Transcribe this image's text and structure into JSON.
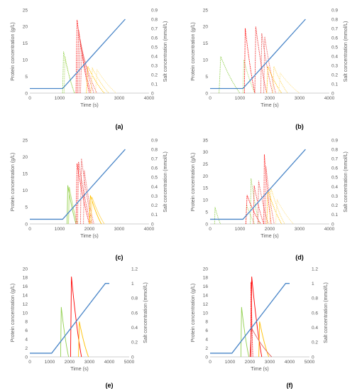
{
  "figure": {
    "panels": [
      {
        "id": "a",
        "label": "(a)"
      },
      {
        "id": "b",
        "label": "(b)"
      },
      {
        "id": "c",
        "label": "(c)"
      },
      {
        "id": "d",
        "label": "(d)"
      },
      {
        "id": "e",
        "label": "(e)"
      },
      {
        "id": "f",
        "label": "(f)"
      }
    ]
  },
  "chart_data": [
    {
      "panel": "a",
      "type": "line",
      "xlabel": "Time (s)",
      "ylabel": "Protein concentration (g/L)",
      "y2label": "Salt concentration (mmol/L)",
      "xlim": [
        0,
        4000
      ],
      "ylim": [
        0,
        25
      ],
      "y2lim": [
        0,
        0.9
      ],
      "xticks": [
        "0",
        "1000",
        "2000",
        "3000",
        "4000"
      ],
      "yticks": [
        "0",
        "5",
        "10",
        "15",
        "20",
        "25"
      ],
      "y2ticks": [
        "0",
        "0.1",
        "0.2",
        "0.3",
        "0.4",
        "0.5",
        "0.6",
        "0.7",
        "0.8",
        "0.9"
      ],
      "salt": {
        "color": "#4a86c8",
        "x": [
          0,
          1100,
          3200
        ],
        "y": [
          0.05,
          0.05,
          0.8
        ]
      },
      "peaks": [
        {
          "color": "#92d050",
          "dashed": true,
          "x0": 1100,
          "x1": 1500,
          "h": 12.5
        },
        {
          "color": "#b5dc70",
          "dashed": true,
          "x0": 1150,
          "x1": 1500,
          "h": 11
        },
        {
          "color": "#ff0000",
          "dashed": true,
          "x0": 1550,
          "x1": 2000,
          "h": 22
        },
        {
          "color": "#f03030",
          "dashed": true,
          "x0": 1600,
          "x1": 2050,
          "h": 19
        },
        {
          "color": "#e85050",
          "dashed": true,
          "x0": 1650,
          "x1": 2150,
          "h": 16
        },
        {
          "color": "#f06060",
          "dashed": true,
          "x0": 1700,
          "x1": 2250,
          "h": 13
        },
        {
          "color": "#ffc000",
          "dashed": true,
          "x0": 1900,
          "x1": 2500,
          "h": 8
        },
        {
          "color": "#ffd966",
          "dashed": true,
          "x0": 2050,
          "x1": 2650,
          "h": 7.5
        },
        {
          "color": "#ffe699",
          "dashed": true,
          "x0": 2200,
          "x1": 2900,
          "h": 7
        }
      ]
    },
    {
      "panel": "b",
      "type": "line",
      "xlabel": "Time (s)",
      "ylabel": "Protein concentration (g/L)",
      "y2label": "Salt concentration (mmol/L)",
      "xlim": [
        0,
        4000
      ],
      "ylim": [
        0,
        25
      ],
      "y2lim": [
        0,
        0.9
      ],
      "xticks": [
        "0",
        "1000",
        "2000",
        "3000",
        "4000"
      ],
      "yticks": [
        "0",
        "5",
        "10",
        "15",
        "20",
        "25"
      ],
      "y2ticks": [
        "0",
        "0.1",
        "0.2",
        "0.3",
        "0.4",
        "0.5",
        "0.6",
        "0.7",
        "0.8",
        "0.9"
      ],
      "salt": {
        "color": "#4a86c8",
        "x": [
          0,
          1100,
          3200
        ],
        "y": [
          0.05,
          0.05,
          0.8
        ]
      },
      "peaks": [
        {
          "color": "#92d050",
          "dashed": true,
          "x0": 300,
          "x1": 1000,
          "h": 11
        },
        {
          "color": "#b5dc70",
          "dashed": true,
          "x0": 1100,
          "x1": 1500,
          "h": 10
        },
        {
          "color": "#ff0000",
          "dashed": true,
          "x0": 1150,
          "x1": 1500,
          "h": 19.5
        },
        {
          "color": "#f03030",
          "dashed": true,
          "x0": 1500,
          "x1": 1900,
          "h": 20
        },
        {
          "color": "#e85050",
          "dashed": true,
          "x0": 1700,
          "x1": 2100,
          "h": 18
        },
        {
          "color": "#f06060",
          "dashed": true,
          "x0": 1800,
          "x1": 2200,
          "h": 17
        },
        {
          "color": "#ffc000",
          "dashed": true,
          "x0": 1900,
          "x1": 2400,
          "h": 8
        },
        {
          "color": "#ffd966",
          "dashed": true,
          "x0": 2100,
          "x1": 2600,
          "h": 8
        },
        {
          "color": "#ffe699",
          "dashed": true,
          "x0": 2300,
          "x1": 3000,
          "h": 6
        }
      ]
    },
    {
      "panel": "c",
      "type": "line",
      "xlabel": "Time (s)",
      "ylabel": "Protein concentration (g/L)",
      "y2label": "Salt concentration (mmol/L)",
      "xlim": [
        0,
        4000
      ],
      "ylim": [
        0,
        25
      ],
      "y2lim": [
        0,
        0.9
      ],
      "xticks": [
        "0",
        "1000",
        "2000",
        "3000",
        "4000"
      ],
      "yticks": [
        "0",
        "5",
        "10",
        "15",
        "20",
        "25"
      ],
      "y2ticks": [
        "0",
        "0.1",
        "0.2",
        "0.3",
        "0.4",
        "0.5",
        "0.6",
        "0.7",
        "0.8",
        "0.9"
      ],
      "salt": {
        "color": "#4a86c8",
        "x": [
          0,
          1100,
          3200
        ],
        "y": [
          0.05,
          0.05,
          0.8
        ]
      },
      "peaks": [
        {
          "color": "#92d050",
          "dashed": false,
          "x0": 1250,
          "x1": 1550,
          "h": 11.5
        },
        {
          "color": "#b5dc70",
          "dashed": false,
          "x0": 1300,
          "x1": 1600,
          "h": 11
        },
        {
          "color": "#ff0000",
          "dashed": true,
          "x0": 1550,
          "x1": 2000,
          "h": 18
        },
        {
          "color": "#f03030",
          "dashed": true,
          "x0": 1600,
          "x1": 2050,
          "h": 18.5
        },
        {
          "color": "#e85050",
          "dashed": true,
          "x0": 1700,
          "x1": 2100,
          "h": 19.5
        },
        {
          "color": "#f06060",
          "dashed": true,
          "x0": 1800,
          "x1": 2150,
          "h": 16
        },
        {
          "color": "#ffc000",
          "dashed": false,
          "x0": 2000,
          "x1": 2400,
          "h": 8.5
        },
        {
          "color": "#ffd966",
          "dashed": false,
          "x0": 2050,
          "x1": 2500,
          "h": 8
        }
      ]
    },
    {
      "panel": "d",
      "type": "line",
      "xlabel": "Time (s)",
      "ylabel": "Protein concentration (g/L)",
      "y2label": "Salt concentration (mmol/L)",
      "xlim": [
        0,
        4000
      ],
      "ylim": [
        0,
        35
      ],
      "y2lim": [
        0,
        0.9
      ],
      "xticks": [
        "0",
        "1000",
        "2000",
        "3000",
        "4000"
      ],
      "yticks": [
        "0",
        "5",
        "10",
        "15",
        "20",
        "25",
        "30",
        "35"
      ],
      "y2ticks": [
        "0",
        "0.1",
        "0.2",
        "0.3",
        "0.4",
        "0.5",
        "0.6",
        "0.7",
        "0.8",
        "0.9"
      ],
      "salt": {
        "color": "#4a86c8",
        "x": [
          0,
          1100,
          3200
        ],
        "y": [
          0.05,
          0.05,
          0.8
        ]
      },
      "peaks": [
        {
          "color": "#92d050",
          "dashed": true,
          "x0": 150,
          "x1": 350,
          "h": 7
        },
        {
          "color": "#b5dc70",
          "dashed": true,
          "x0": 1200,
          "x1": 1500,
          "h": 8
        },
        {
          "color": "#a0d060",
          "dashed": true,
          "x0": 1350,
          "x1": 1650,
          "h": 19
        },
        {
          "color": "#ff0000",
          "dashed": true,
          "x0": 1200,
          "x1": 1700,
          "h": 12
        },
        {
          "color": "#f03030",
          "dashed": true,
          "x0": 1450,
          "x1": 1800,
          "h": 16
        },
        {
          "color": "#e85050",
          "dashed": true,
          "x0": 1600,
          "x1": 1950,
          "h": 18
        },
        {
          "color": "#ff2020",
          "dashed": true,
          "x0": 1800,
          "x1": 2050,
          "h": 29
        },
        {
          "color": "#f06060",
          "dashed": true,
          "x0": 1850,
          "x1": 2150,
          "h": 24
        },
        {
          "color": "#ffc000",
          "dashed": true,
          "x0": 1900,
          "x1": 2400,
          "h": 14
        },
        {
          "color": "#ffd966",
          "dashed": true,
          "x0": 2000,
          "x1": 2500,
          "h": 15
        },
        {
          "color": "#ffe699",
          "dashed": true,
          "x0": 2200,
          "x1": 2800,
          "h": 10
        }
      ]
    },
    {
      "panel": "e",
      "type": "line",
      "xlabel": "Time (s)",
      "ylabel": "Protein concentration (g/L)",
      "y2label": "Salt concentration (mmol/L)",
      "xlim": [
        0,
        5000
      ],
      "ylim": [
        0,
        20
      ],
      "y2lim": [
        0,
        1.2
      ],
      "xticks": [
        "0",
        "1000",
        "2000",
        "3000",
        "4000",
        "5000"
      ],
      "yticks": [
        "0",
        "2",
        "4",
        "6",
        "8",
        "10",
        "12",
        "14",
        "16",
        "18",
        "20"
      ],
      "y2ticks": [
        "0",
        "0.2",
        "0.4",
        "0.6",
        "0.8",
        "1",
        "1.2"
      ],
      "salt": {
        "color": "#4a86c8",
        "x": [
          0,
          1100,
          3800,
          4000
        ],
        "y": [
          0.05,
          0.05,
          1.0,
          1.0
        ]
      },
      "peaks": [
        {
          "color": "#92d050",
          "dashed": false,
          "x0": 1550,
          "x1": 1950,
          "h": 11.3
        },
        {
          "color": "#ff0000",
          "dashed": false,
          "x0": 2050,
          "x1": 2600,
          "h": 18.2
        },
        {
          "color": "#ffc000",
          "dashed": false,
          "x0": 2450,
          "x1": 2950,
          "h": 8
        }
      ]
    },
    {
      "panel": "f",
      "type": "line",
      "xlabel": "Time (s)",
      "ylabel": "Protein concentration (g/L)",
      "y2label": "Salt concentration (mmol/L)",
      "xlim": [
        0,
        5000
      ],
      "ylim": [
        0,
        20
      ],
      "y2lim": [
        0,
        1.2
      ],
      "xticks": [
        "0",
        "1000",
        "2000",
        "3000",
        "4000",
        "5000"
      ],
      "yticks": [
        "0",
        "2",
        "4",
        "6",
        "8",
        "10",
        "12",
        "14",
        "16",
        "18",
        "20"
      ],
      "y2ticks": [
        "0",
        "0.2",
        "0.4",
        "0.6",
        "0.8",
        "1",
        "1.2"
      ],
      "salt": {
        "color": "#4a86c8",
        "x": [
          0,
          1100,
          3800,
          4000
        ],
        "y": [
          0.05,
          0.05,
          1.0,
          1.0
        ]
      },
      "peaks": [
        {
          "color": "#92d050",
          "dashed": false,
          "x0": 1550,
          "x1": 1950,
          "h": 11.3
        },
        {
          "color": "#ff0000",
          "dashed": false,
          "x0": 2050,
          "x1": 2600,
          "h": 18.2
        },
        {
          "color": "#ffc000",
          "dashed": false,
          "x0": 2450,
          "x1": 2950,
          "h": 8
        },
        {
          "color": "#e06060",
          "dashed": false,
          "x0": 2000,
          "x1": 3100,
          "h": 6.5
        },
        {
          "color": "#ff0000",
          "dashed": true,
          "x0": 2050,
          "x1": 2150,
          "h": 17
        }
      ]
    }
  ]
}
